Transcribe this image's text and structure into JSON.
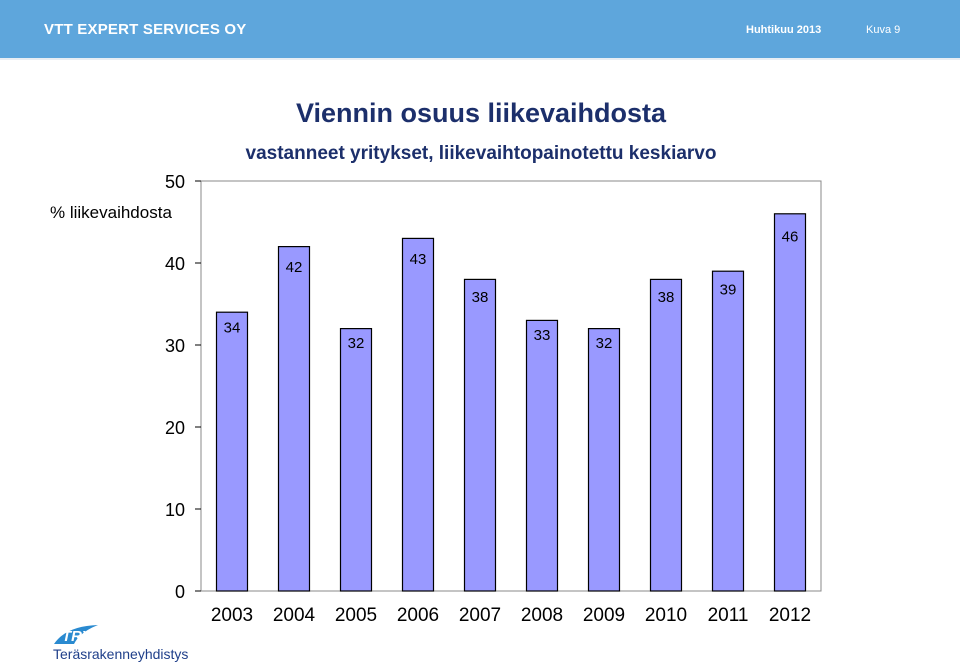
{
  "header": {
    "brand": "VTT EXPERT SERVICES OY",
    "date": "Huhtikuu 2013",
    "figure_label": "Kuva 9",
    "background_color": "#5ea6dc"
  },
  "logo": {
    "mark": "TRY",
    "name": "Teräsrakenneyhdistys"
  },
  "chart_data": {
    "type": "bar",
    "title": "Viennin osuus liikevaihdosta",
    "subtitle": "vastanneet yritykset, liikevaihtopainotettu keskiarvo",
    "ylabel": "% liikevaihdosta",
    "xlabel": "",
    "categories": [
      "2003",
      "2004",
      "2005",
      "2006",
      "2007",
      "2008",
      "2009",
      "2010",
      "2011",
      "2012"
    ],
    "values": [
      34,
      42,
      32,
      43,
      38,
      33,
      32,
      38,
      39,
      46
    ],
    "ylim": [
      0,
      50
    ],
    "yticks": [
      0,
      10,
      20,
      30,
      40,
      50
    ],
    "grid": false,
    "legend": "none",
    "bar_color": "#9999ff"
  }
}
